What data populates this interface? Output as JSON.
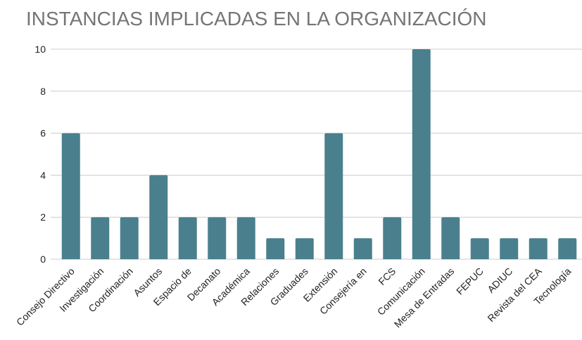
{
  "chart_data": {
    "type": "bar",
    "title": "INSTANCIAS IMPLICADAS EN LA ORGANIZACIÓN",
    "categories": [
      "Consejo Directivo",
      "Investigación",
      "Coordinación",
      "Asuntos",
      "Espacio de",
      "Decanato",
      "Académica",
      "Relaciones",
      "Graduades",
      "Extensión",
      "Consejería en",
      "FCS",
      "Comunicación",
      "Mesa de Entradas",
      "FEPUC",
      "ADIUC",
      "Revista del CEA",
      "Tecnología"
    ],
    "values": [
      6,
      2,
      2,
      4,
      2,
      2,
      2,
      1,
      1,
      6,
      1,
      2,
      10,
      2,
      1,
      1,
      1,
      1
    ],
    "color": "#4a808d",
    "ylim": [
      0,
      10
    ],
    "yticks": [
      0,
      2,
      4,
      6,
      8,
      10
    ],
    "grid": true
  }
}
